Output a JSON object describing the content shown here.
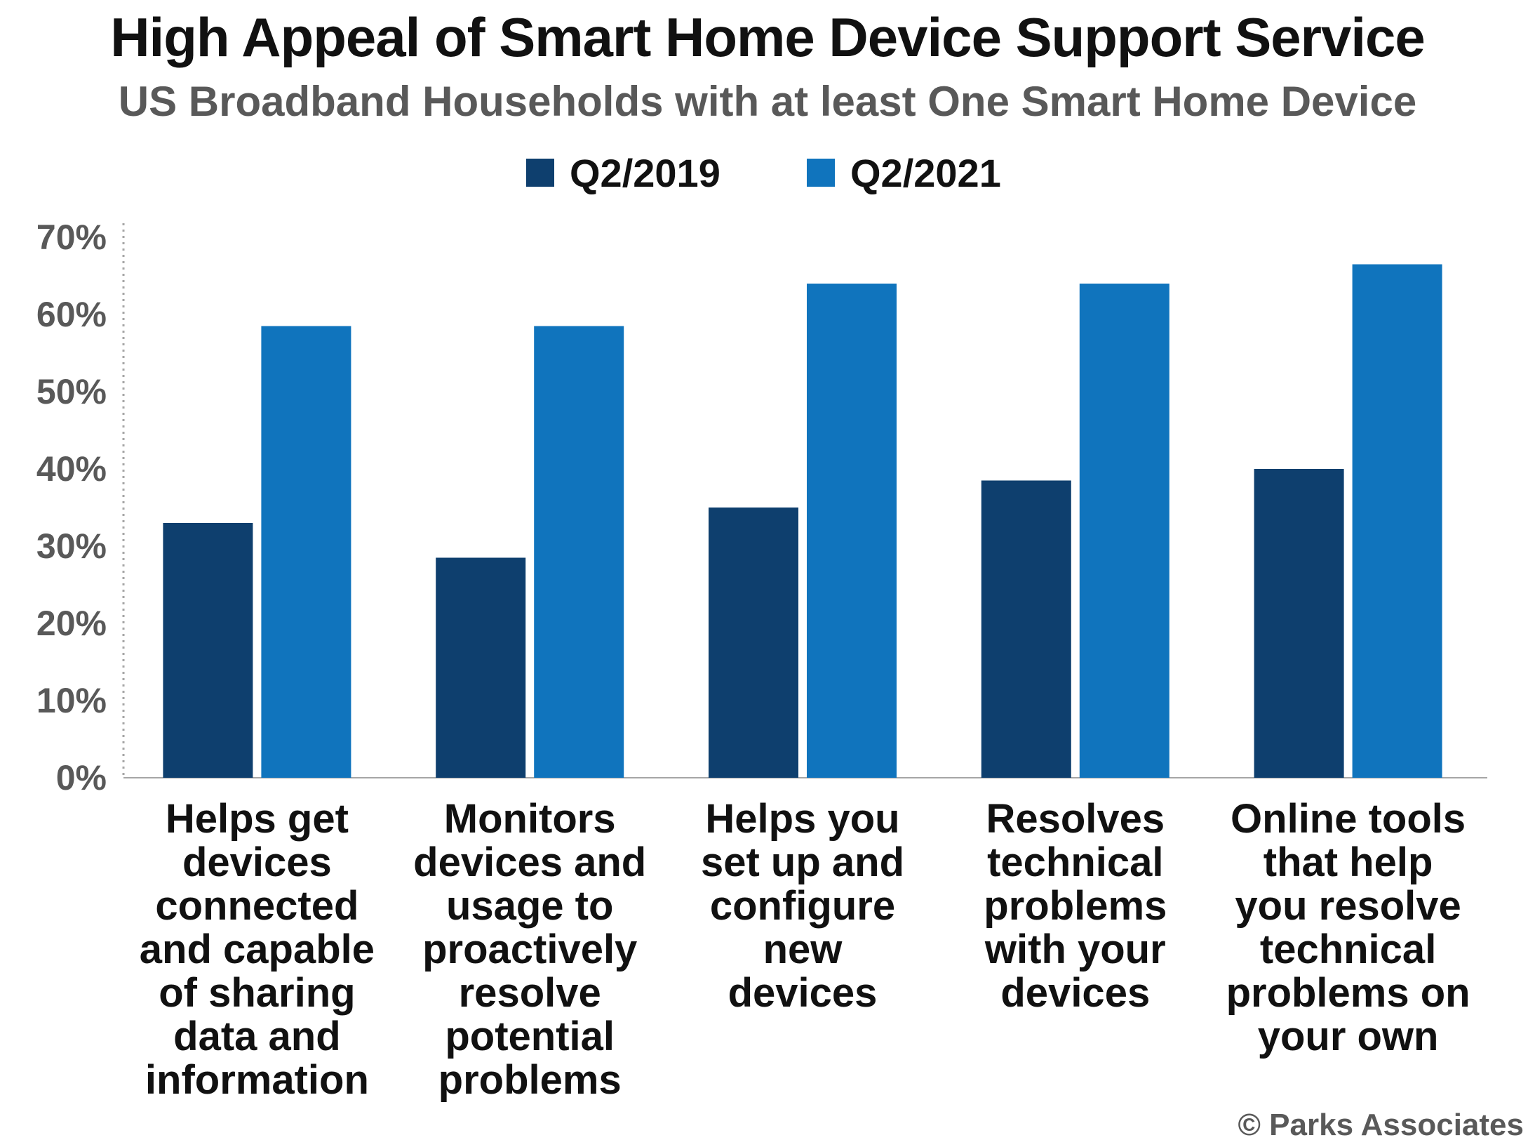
{
  "chart_data": {
    "type": "bar",
    "title": "High Appeal of Smart Home Device Support Service",
    "subtitle": "US Broadband Households with at least One Smart Home Device",
    "categories": [
      [
        "Helps get",
        "devices",
        "connected",
        "and capable",
        "of sharing",
        "data and",
        "information"
      ],
      [
        "Monitors",
        "devices and",
        "usage to",
        "proactively",
        "resolve",
        "potential",
        "problems"
      ],
      [
        "Helps you",
        "set up and",
        "configure",
        "new",
        "devices"
      ],
      [
        "Resolves",
        "technical",
        "problems",
        "with your",
        "devices"
      ],
      [
        "Online tools",
        "that help",
        "you resolve",
        "technical",
        "problems on",
        "your own"
      ]
    ],
    "series": [
      {
        "name": "Q2/2019",
        "color": "#0e3f6e",
        "values": [
          33,
          28.5,
          35,
          38.5,
          40
        ]
      },
      {
        "name": "Q2/2021",
        "color": "#1074bd",
        "values": [
          58.5,
          58.5,
          64,
          64,
          66.5
        ]
      }
    ],
    "ylim": [
      0,
      70
    ],
    "yticks": [
      0,
      10,
      20,
      30,
      40,
      50,
      60,
      70
    ],
    "ytick_labels": [
      "0%",
      "10%",
      "20%",
      "30%",
      "40%",
      "50%",
      "60%",
      "70%"
    ],
    "xlabel": "",
    "ylabel": "",
    "legend_position": "top-center",
    "grid": false
  },
  "copyright": "© Parks Associates"
}
